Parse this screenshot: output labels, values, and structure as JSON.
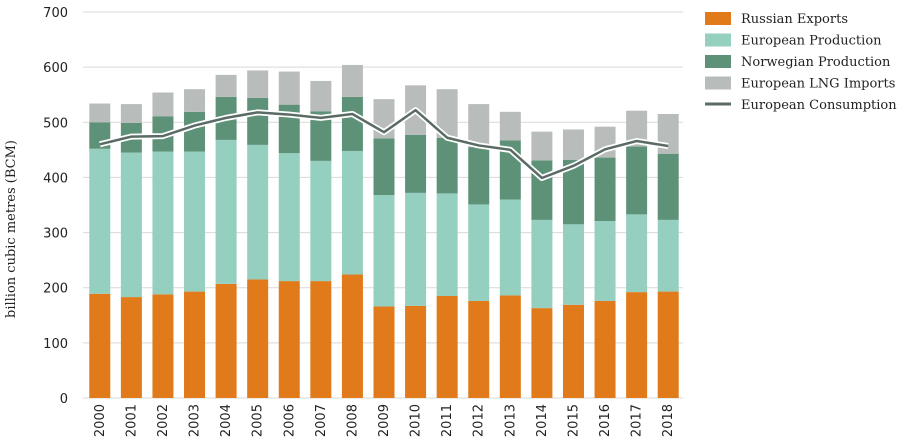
{
  "chart_data": {
    "type": "bar",
    "stacked": true,
    "ylabel": "billion cubic metres (BCM)",
    "ylim": [
      0,
      700
    ],
    "yticks": [
      0,
      100,
      200,
      300,
      400,
      500,
      600,
      700
    ],
    "grid": true,
    "legend_position": "top-right",
    "categories": [
      "2000",
      "2001",
      "2002",
      "2003",
      "2004",
      "2005",
      "2006",
      "2007",
      "2008",
      "2009",
      "2010",
      "2011",
      "2012",
      "2013",
      "2014",
      "2015",
      "2016",
      "2017",
      "2018"
    ],
    "series": [
      {
        "name": "Russian Exports",
        "color": "#e07a1a",
        "values": [
          189,
          183,
          188,
          193,
          207,
          215,
          212,
          212,
          224,
          166,
          167,
          185,
          176,
          186,
          163,
          169,
          176,
          192,
          193
        ]
      },
      {
        "name": "European Production",
        "color": "#95cfbf",
        "values": [
          263,
          262,
          259,
          254,
          261,
          244,
          232,
          218,
          224,
          202,
          205,
          186,
          175,
          174,
          160,
          146,
          145,
          141,
          130
        ]
      },
      {
        "name": "Norwegian Production",
        "color": "#5e9278",
        "values": [
          48,
          54,
          64,
          72,
          78,
          85,
          88,
          90,
          98,
          103,
          105,
          101,
          104,
          107,
          108,
          117,
          115,
          123,
          120
        ]
      },
      {
        "name": "European LNG Imports",
        "color": "#b8bcba",
        "values": [
          34,
          34,
          43,
          41,
          40,
          50,
          60,
          55,
          58,
          71,
          90,
          88,
          78,
          52,
          52,
          55,
          56,
          65,
          72
        ]
      }
    ],
    "lines": [
      {
        "name": "European Consumption",
        "color": "#5a6b66",
        "values": [
          460,
          474,
          475,
          494,
          508,
          518,
          514,
          508,
          515,
          482,
          522,
          472,
          458,
          450,
          399,
          421,
          451,
          466,
          457
        ]
      }
    ]
  }
}
